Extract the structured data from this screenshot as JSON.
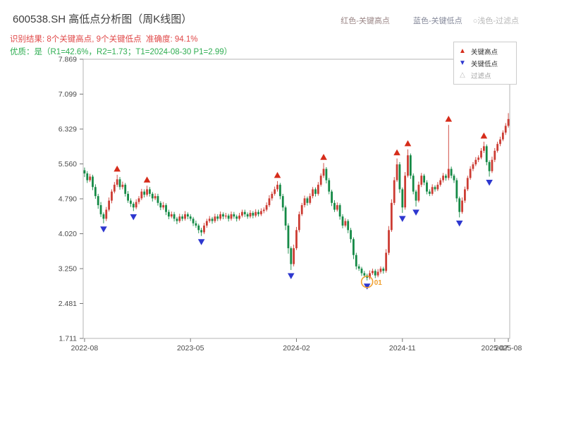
{
  "header": {
    "title": "600538.SH 高低点分析图（周K线图）",
    "legend_inline": [
      {
        "label": "红色-关键高点",
        "color": "#9a8585"
      },
      {
        "label": "蓝色-关键低点",
        "color": "#85899a"
      },
      {
        "label": "○浅色-过滤点",
        "color": "#b8b8b8"
      }
    ],
    "result_line": "识别结果: 8个关键高点, 9个关键低点  准确度: 94.1%",
    "result_color": "#e04848",
    "quality_line": "优质：是（R1=42.6%，R2=1.73；T1=2024-08-30 P1=2.99）",
    "quality_color": "#2fae52"
  },
  "legend_box": {
    "items": [
      {
        "label": "关键高点",
        "glyph": "▲",
        "marker": "up-triangle",
        "marker_color": "#d62c1a",
        "label_color": "#333333"
      },
      {
        "label": "关键低点",
        "glyph": "▼",
        "marker": "down-triangle",
        "marker_color": "#2d37cf",
        "label_color": "#333333"
      },
      {
        "label": "过滤点",
        "glyph": "△",
        "marker": "open-triangle",
        "marker_color": "#bdbdbd",
        "label_color": "#a0a0a0"
      }
    ]
  },
  "chart_data": {
    "type": "candlestick",
    "interval": "weekly",
    "title": "600538.SH 高低点分析图（周K线图）",
    "y_axis": {
      "min": 1.711,
      "max": 7.869,
      "ticks": [
        7.869,
        7.099,
        6.329,
        5.56,
        4.79,
        4.02,
        3.25,
        2.481,
        1.711
      ]
    },
    "x_axis": {
      "ticks": [
        {
          "label": "2022-08",
          "week": 0
        },
        {
          "label": "2023-05",
          "week": 39
        },
        {
          "label": "2024-02",
          "week": 78
        },
        {
          "label": "2024-11",
          "week": 117
        },
        {
          "label": "2025-07",
          "week": 151
        },
        {
          "label": "2025-08",
          "week": 156
        }
      ]
    },
    "colors": {
      "up": "#cc3c33",
      "down": "#158a46",
      "key_high": "#d62c1a",
      "key_low": "#2d37cf",
      "filtered": "#bdbdbd",
      "highlight": "#f0a030"
    },
    "candles": [
      [
        5.42,
        5.48,
        5.27,
        5.35
      ],
      [
        5.35,
        5.4,
        5.14,
        5.2
      ],
      [
        5.2,
        5.34,
        5.16,
        5.28
      ],
      [
        5.28,
        5.32,
        4.98,
        5.05
      ],
      [
        5.05,
        5.11,
        4.79,
        4.85
      ],
      [
        4.85,
        4.9,
        4.57,
        4.65
      ],
      [
        4.65,
        4.72,
        4.39,
        4.45
      ],
      [
        4.45,
        4.49,
        4.25,
        4.35
      ],
      [
        4.35,
        4.61,
        4.3,
        4.55
      ],
      [
        4.55,
        4.82,
        4.51,
        4.75
      ],
      [
        4.75,
        5.0,
        4.69,
        4.95
      ],
      [
        4.95,
        5.16,
        4.91,
        5.1
      ],
      [
        5.1,
        5.32,
        5.05,
        5.22
      ],
      [
        5.22,
        5.27,
        4.99,
        5.05
      ],
      [
        5.05,
        5.17,
        5.0,
        5.1
      ],
      [
        5.1,
        5.14,
        4.84,
        4.9
      ],
      [
        4.9,
        4.96,
        4.7,
        4.75
      ],
      [
        4.75,
        4.8,
        4.61,
        4.68
      ],
      [
        4.68,
        4.72,
        4.52,
        4.6
      ],
      [
        4.6,
        4.78,
        4.56,
        4.72
      ],
      [
        4.72,
        4.85,
        4.67,
        4.8
      ],
      [
        4.8,
        5.01,
        4.76,
        4.95
      ],
      [
        4.95,
        5.0,
        4.82,
        4.88
      ],
      [
        4.88,
        5.08,
        4.84,
        5.0
      ],
      [
        5.0,
        5.05,
        4.84,
        4.9
      ],
      [
        4.9,
        4.94,
        4.73,
        4.8
      ],
      [
        4.8,
        4.91,
        4.76,
        4.85
      ],
      [
        4.85,
        4.9,
        4.64,
        4.7
      ],
      [
        4.7,
        4.74,
        4.54,
        4.6
      ],
      [
        4.6,
        4.72,
        4.55,
        4.65
      ],
      [
        4.65,
        4.69,
        4.43,
        4.5
      ],
      [
        4.5,
        4.55,
        4.34,
        4.4
      ],
      [
        4.4,
        4.51,
        4.36,
        4.45
      ],
      [
        4.45,
        4.5,
        4.29,
        4.35
      ],
      [
        4.35,
        4.39,
        4.23,
        4.3
      ],
      [
        4.3,
        4.46,
        4.26,
        4.4
      ],
      [
        4.4,
        4.45,
        4.3,
        4.35
      ],
      [
        4.35,
        4.52,
        4.31,
        4.45
      ],
      [
        4.45,
        4.49,
        4.34,
        4.4
      ],
      [
        4.4,
        4.45,
        4.3,
        4.35
      ],
      [
        4.35,
        4.39,
        4.19,
        4.25
      ],
      [
        4.25,
        4.31,
        4.15,
        4.2
      ],
      [
        4.2,
        4.24,
        4.03,
        4.1
      ],
      [
        4.1,
        4.15,
        3.97,
        4.05
      ],
      [
        4.05,
        4.26,
        4.01,
        4.2
      ],
      [
        4.2,
        4.35,
        4.15,
        4.3
      ],
      [
        4.3,
        4.41,
        4.26,
        4.35
      ],
      [
        4.35,
        4.39,
        4.24,
        4.3
      ],
      [
        4.3,
        4.46,
        4.26,
        4.4
      ],
      [
        4.4,
        4.45,
        4.3,
        4.35
      ],
      [
        4.35,
        4.51,
        4.31,
        4.45
      ],
      [
        4.45,
        4.49,
        4.34,
        4.4
      ],
      [
        4.4,
        4.48,
        4.35,
        4.42
      ],
      [
        4.42,
        4.46,
        4.29,
        4.35
      ],
      [
        4.35,
        4.51,
        4.31,
        4.45
      ],
      [
        4.45,
        4.5,
        4.35,
        4.4
      ],
      [
        4.4,
        4.44,
        4.29,
        4.35
      ],
      [
        4.35,
        4.48,
        4.31,
        4.42
      ],
      [
        4.42,
        4.55,
        4.38,
        4.5
      ],
      [
        4.5,
        4.55,
        4.39,
        4.45
      ],
      [
        4.45,
        4.49,
        4.35,
        4.4
      ],
      [
        4.4,
        4.54,
        4.36,
        4.48
      ],
      [
        4.48,
        4.52,
        4.36,
        4.42
      ],
      [
        4.42,
        4.56,
        4.38,
        4.5
      ],
      [
        4.5,
        4.55,
        4.4,
        4.45
      ],
      [
        4.45,
        4.58,
        4.41,
        4.52
      ],
      [
        4.52,
        4.6,
        4.47,
        4.55
      ],
      [
        4.55,
        4.71,
        4.51,
        4.65
      ],
      [
        4.65,
        4.87,
        4.61,
        4.8
      ],
      [
        4.8,
        4.95,
        4.75,
        4.9
      ],
      [
        4.9,
        5.06,
        4.86,
        5.0
      ],
      [
        5.0,
        5.18,
        4.95,
        5.1
      ],
      [
        5.1,
        5.14,
        4.78,
        4.85
      ],
      [
        4.85,
        4.9,
        4.52,
        4.6
      ],
      [
        4.6,
        4.64,
        4.1,
        4.2
      ],
      [
        4.2,
        4.25,
        3.58,
        3.7
      ],
      [
        3.7,
        3.74,
        3.22,
        3.35
      ],
      [
        3.35,
        3.78,
        3.3,
        3.7
      ],
      [
        3.7,
        4.17,
        3.66,
        4.1
      ],
      [
        4.1,
        4.51,
        4.05,
        4.45
      ],
      [
        4.45,
        4.7,
        4.41,
        4.65
      ],
      [
        4.65,
        4.86,
        4.6,
        4.8
      ],
      [
        4.8,
        4.84,
        4.64,
        4.7
      ],
      [
        4.7,
        4.91,
        4.66,
        4.85
      ],
      [
        4.85,
        5.05,
        4.8,
        5.0
      ],
      [
        5.0,
        5.04,
        4.84,
        4.9
      ],
      [
        4.9,
        5.16,
        4.86,
        5.1
      ],
      [
        5.1,
        5.35,
        5.06,
        5.3
      ],
      [
        5.3,
        5.58,
        5.25,
        5.45
      ],
      [
        5.45,
        5.49,
        5.13,
        5.2
      ],
      [
        5.2,
        5.25,
        4.89,
        4.95
      ],
      [
        4.95,
        4.99,
        4.63,
        4.7
      ],
      [
        4.7,
        4.76,
        4.5,
        4.55
      ],
      [
        4.55,
        4.71,
        4.51,
        4.65
      ],
      [
        4.65,
        4.69,
        4.33,
        4.4
      ],
      [
        4.4,
        4.45,
        4.14,
        4.2
      ],
      [
        4.2,
        4.36,
        4.16,
        4.3
      ],
      [
        4.3,
        4.34,
        4.03,
        4.1
      ],
      [
        4.1,
        4.15,
        3.82,
        3.9
      ],
      [
        3.9,
        3.94,
        3.46,
        3.55
      ],
      [
        3.55,
        3.6,
        3.23,
        3.3
      ],
      [
        3.3,
        3.35,
        3.2,
        3.25
      ],
      [
        3.25,
        3.29,
        3.09,
        3.15
      ],
      [
        3.15,
        3.2,
        3.05,
        3.1
      ],
      [
        3.1,
        3.14,
        2.99,
        3.05
      ],
      [
        3.05,
        3.21,
        3.01,
        3.15
      ],
      [
        3.15,
        3.25,
        3.11,
        3.2
      ],
      [
        3.2,
        3.24,
        3.04,
        3.1
      ],
      [
        3.1,
        3.24,
        3.06,
        3.18
      ],
      [
        3.18,
        3.3,
        3.14,
        3.25
      ],
      [
        3.25,
        3.29,
        3.14,
        3.2
      ],
      [
        3.2,
        3.68,
        3.16,
        3.6
      ],
      [
        3.6,
        4.19,
        3.55,
        4.1
      ],
      [
        4.1,
        4.78,
        4.06,
        4.7
      ],
      [
        4.7,
        5.27,
        4.65,
        5.2
      ],
      [
        5.2,
        5.68,
        5.16,
        5.55
      ],
      [
        5.55,
        5.6,
        4.92,
        5.0
      ],
      [
        5.0,
        5.04,
        4.48,
        4.6
      ],
      [
        4.6,
        5.38,
        4.55,
        5.3
      ],
      [
        5.3,
        5.88,
        5.26,
        5.75
      ],
      [
        5.75,
        5.79,
        5.23,
        5.3
      ],
      [
        5.3,
        5.35,
        4.89,
        4.95
      ],
      [
        4.95,
        4.99,
        4.62,
        4.75
      ],
      [
        4.75,
        5.17,
        4.71,
        5.1
      ],
      [
        5.1,
        5.36,
        5.05,
        5.3
      ],
      [
        5.3,
        5.34,
        5.09,
        5.15
      ],
      [
        5.15,
        5.2,
        4.89,
        4.95
      ],
      [
        4.95,
        5.0,
        4.85,
        4.9
      ],
      [
        4.9,
        5.11,
        4.86,
        5.05
      ],
      [
        5.05,
        5.09,
        4.95,
        5.0
      ],
      [
        5.0,
        5.16,
        4.96,
        5.1
      ],
      [
        5.1,
        5.25,
        5.06,
        5.2
      ],
      [
        5.2,
        5.36,
        5.15,
        5.3
      ],
      [
        5.3,
        5.34,
        5.19,
        5.25
      ],
      [
        5.25,
        6.42,
        5.2,
        5.45
      ],
      [
        5.45,
        5.5,
        5.24,
        5.3
      ],
      [
        5.3,
        5.34,
        5.14,
        5.2
      ],
      [
        5.2,
        5.25,
        4.72,
        4.8
      ],
      [
        4.8,
        4.84,
        4.38,
        4.5
      ],
      [
        4.5,
        4.82,
        4.46,
        4.75
      ],
      [
        4.75,
        5.06,
        4.7,
        5.0
      ],
      [
        5.0,
        5.3,
        4.96,
        5.25
      ],
      [
        5.25,
        5.51,
        5.21,
        5.45
      ],
      [
        5.45,
        5.6,
        5.4,
        5.55
      ],
      [
        5.55,
        5.71,
        5.51,
        5.65
      ],
      [
        5.65,
        5.75,
        5.6,
        5.7
      ],
      [
        5.7,
        5.91,
        5.66,
        5.85
      ],
      [
        5.85,
        6.05,
        5.8,
        5.95
      ],
      [
        5.95,
        5.99,
        5.53,
        5.6
      ],
      [
        5.6,
        5.64,
        5.28,
        5.4
      ],
      [
        5.4,
        5.72,
        5.36,
        5.65
      ],
      [
        5.65,
        5.91,
        5.6,
        5.85
      ],
      [
        5.85,
        6.05,
        5.81,
        6.0
      ],
      [
        6.0,
        6.16,
        5.95,
        6.1
      ],
      [
        6.1,
        6.3,
        6.06,
        6.25
      ],
      [
        6.25,
        6.46,
        6.2,
        6.4
      ],
      [
        6.4,
        6.68,
        6.36,
        6.55
      ]
    ],
    "key_highs": [
      {
        "week": 12,
        "price": 5.32
      },
      {
        "week": 23,
        "price": 5.08
      },
      {
        "week": 71,
        "price": 5.18
      },
      {
        "week": 88,
        "price": 5.58
      },
      {
        "week": 115,
        "price": 5.68
      },
      {
        "week": 119,
        "price": 5.88
      },
      {
        "week": 134,
        "price": 6.42
      },
      {
        "week": 147,
        "price": 6.05
      }
    ],
    "key_lows": [
      {
        "week": 7,
        "price": 4.25
      },
      {
        "week": 18,
        "price": 4.52
      },
      {
        "week": 43,
        "price": 3.97
      },
      {
        "week": 76,
        "price": 3.22
      },
      {
        "week": 104,
        "price": 2.99
      },
      {
        "week": 117,
        "price": 4.48
      },
      {
        "week": 122,
        "price": 4.62
      },
      {
        "week": 138,
        "price": 4.38
      },
      {
        "week": 149,
        "price": 5.28
      }
    ],
    "highlight": {
      "week": 104,
      "price": 2.99,
      "label": "01",
      "date": "2024-08-30"
    }
  }
}
